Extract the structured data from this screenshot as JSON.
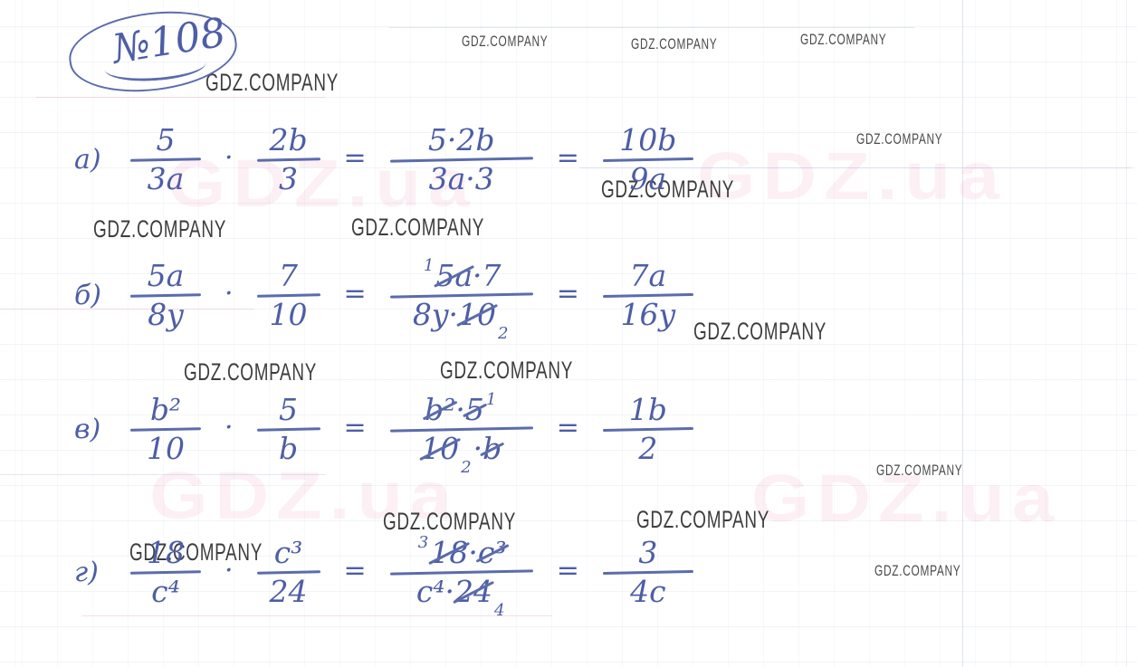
{
  "page": {
    "problem_number": "№108",
    "watermark": "GDZ.COMPANY",
    "ghost_watermark": "GDZ.ua",
    "ink_color": "#4d5ea6",
    "watermark_color": "#3d3d3d"
  },
  "problems": [
    {
      "label": "а)",
      "terms": [
        {
          "t": "frac",
          "num": "5",
          "den": "3a"
        },
        {
          "t": "op",
          "v": "·"
        },
        {
          "t": "frac",
          "num": "2b",
          "den": "3"
        },
        {
          "t": "op",
          "v": "="
        },
        {
          "t": "frac",
          "num": "5·2b",
          "den": "3a·3"
        },
        {
          "t": "op",
          "v": "="
        },
        {
          "t": "frac",
          "num": "10b",
          "den": "9a"
        }
      ]
    },
    {
      "label": "б)",
      "terms": [
        {
          "t": "frac",
          "num": "5a",
          "den": "8y"
        },
        {
          "t": "op",
          "v": "·"
        },
        {
          "t": "frac",
          "num": "7",
          "den": "10"
        },
        {
          "t": "op",
          "v": "="
        },
        {
          "t": "frac",
          "num": "^1^~5a~·7",
          "den": "8y·~10~_2_"
        },
        {
          "t": "op",
          "v": "="
        },
        {
          "t": "frac",
          "num": "7a",
          "den": "16y"
        }
      ]
    },
    {
      "label": "в)",
      "terms": [
        {
          "t": "frac",
          "num": "b²",
          "den": "10"
        },
        {
          "t": "op",
          "v": "·"
        },
        {
          "t": "frac",
          "num": "5",
          "den": "b"
        },
        {
          "t": "op",
          "v": "="
        },
        {
          "t": "frac",
          "num": "~b²~·~5~^1^",
          "den": "~10~_2_·~b~"
        },
        {
          "t": "op",
          "v": "="
        },
        {
          "t": "frac",
          "num": "1b",
          "den": "2"
        }
      ]
    },
    {
      "label": "г)",
      "terms": [
        {
          "t": "frac",
          "num": "18",
          "den": "c⁴"
        },
        {
          "t": "op",
          "v": "·"
        },
        {
          "t": "frac",
          "num": "c³",
          "den": "24"
        },
        {
          "t": "op",
          "v": "="
        },
        {
          "t": "frac",
          "num": "^3^~18~·~c³~",
          "den": "c⁴·~24~_4_"
        },
        {
          "t": "op",
          "v": "="
        },
        {
          "t": "frac",
          "num": "3",
          "den": "4c"
        }
      ]
    }
  ]
}
